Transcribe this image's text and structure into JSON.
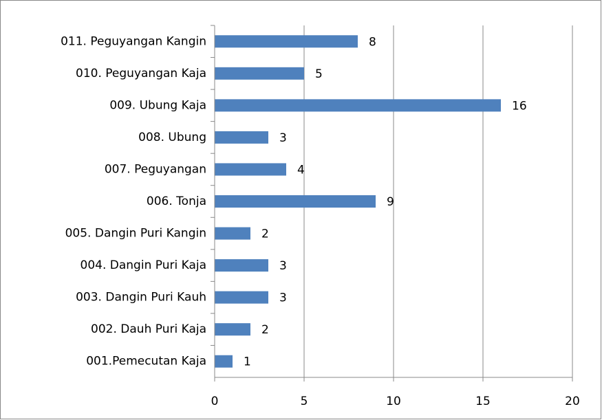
{
  "chart_data": {
    "type": "bar",
    "orientation": "horizontal",
    "categories": [
      "011. Peguyangan Kangin",
      "010. Peguyangan Kaja",
      "009. Ubung Kaja",
      "008. Ubung",
      "007. Peguyangan",
      "006. Tonja",
      "005. Dangin Puri Kangin",
      "004. Dangin Puri Kaja",
      "003. Dangin Puri Kauh",
      "002. Dauh Puri Kaja",
      "001.Pemecutan Kaja"
    ],
    "values": [
      8,
      5,
      16,
      3,
      4,
      9,
      2,
      3,
      3,
      2,
      1
    ],
    "color": "#4f81bd",
    "xlim": [
      0,
      20
    ],
    "xticks": [
      0,
      5,
      10,
      15,
      20
    ],
    "grid": true
  }
}
